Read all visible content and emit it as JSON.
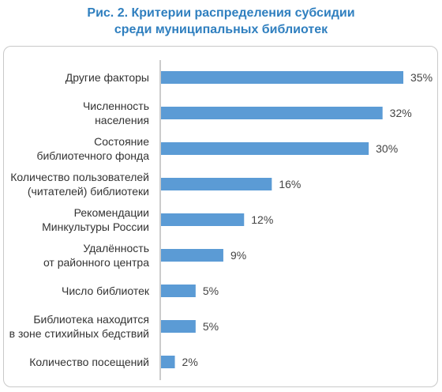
{
  "title": {
    "line1": "Рис. 2. Критерии распределения субсидии",
    "line2": "среди муниципальных библиотек"
  },
  "colors": {
    "bar": "#5b9bd5",
    "title": "#2f7fbf",
    "axis": "#9a9a9a"
  },
  "chart_data": {
    "type": "bar",
    "orientation": "horizontal",
    "categories": [
      [
        "Другие факторы"
      ],
      [
        "Численность",
        "населения"
      ],
      [
        "Состояние",
        "библиотечного фонда"
      ],
      [
        "Количество пользователей",
        "(читателей) библиотеки"
      ],
      [
        "Рекомендации",
        "Минкультуры России"
      ],
      [
        "Удалённость",
        "от районного центра"
      ],
      [
        "Число библиотек"
      ],
      [
        "Библиотека находится",
        "в зоне стихийных бедствий"
      ],
      [
        "Количество посещений"
      ]
    ],
    "values": [
      35,
      32,
      30,
      16,
      12,
      9,
      5,
      5,
      2
    ],
    "value_labels": [
      "35%",
      "32%",
      "30%",
      "16%",
      "12%",
      "9%",
      "5%",
      "5%",
      "2%"
    ],
    "unit": "%",
    "xlim": [
      0,
      35
    ],
    "grid": false
  }
}
